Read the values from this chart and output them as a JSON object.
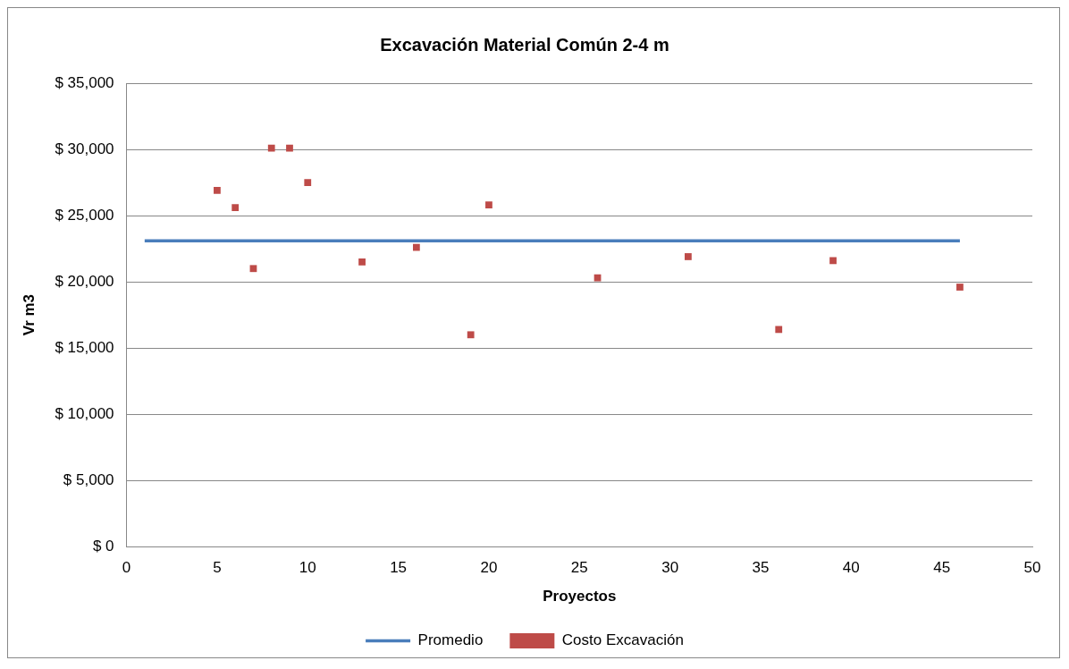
{
  "chart_data": {
    "type": "scatter",
    "title": "Excavación Material Común 2-4 m",
    "xlabel": "Proyectos",
    "ylabel": "Vr m3",
    "xlim": [
      0,
      50
    ],
    "xticks": [
      0,
      5,
      10,
      15,
      20,
      25,
      30,
      35,
      40,
      45,
      50
    ],
    "ylim": [
      0,
      35000
    ],
    "yticks": [
      {
        "value": 0,
        "label": "$ 0"
      },
      {
        "value": 5000,
        "label": "$ 5,000"
      },
      {
        "value": 10000,
        "label": "$ 10,000"
      },
      {
        "value": 15000,
        "label": "$ 15,000"
      },
      {
        "value": 20000,
        "label": "$ 20,000"
      },
      {
        "value": 25000,
        "label": "$ 25,000"
      },
      {
        "value": 30000,
        "label": "$ 30,000"
      },
      {
        "value": 35000,
        "label": "$ 35,000"
      }
    ],
    "grid": "y",
    "legend": "bottom",
    "series": [
      {
        "name": "Promedio",
        "type": "line",
        "color": "#4a7ebb",
        "marker": "none",
        "x": [
          1,
          46
        ],
        "values": [
          23100,
          23100
        ]
      },
      {
        "name": "Costo Excavación",
        "type": "scatter",
        "color": "#be4b48",
        "marker": "square",
        "x": [
          5,
          6,
          7,
          8,
          9,
          10,
          13,
          16,
          19,
          20,
          26,
          31,
          36,
          39,
          46
        ],
        "values": [
          26900,
          25600,
          21000,
          30100,
          30100,
          27500,
          21500,
          22600,
          16000,
          25800,
          20300,
          21900,
          16400,
          21600,
          19600
        ]
      }
    ]
  }
}
